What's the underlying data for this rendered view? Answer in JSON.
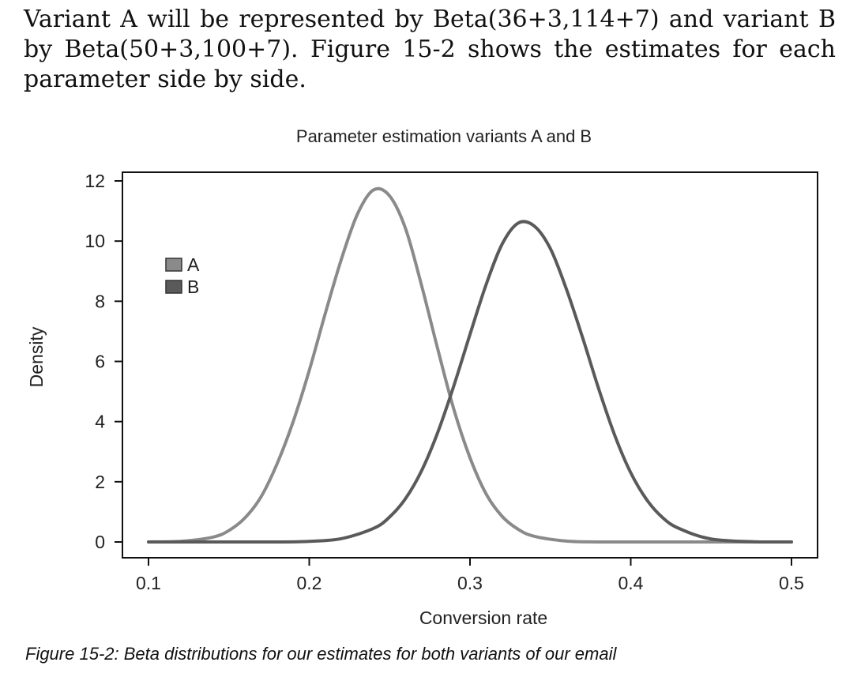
{
  "document": {
    "intro_text": "Variant A will be represented by Beta(36+3,114+7) and variant B by Beta(50+3,100+7). Figure 15-2 shows the estimates for each parameter side by side.",
    "caption": "Figure 15-2: Beta distributions for our estimates for both variants of our email"
  },
  "chart_data": {
    "type": "line",
    "title": "Parameter estimation variants A and B",
    "xlabel": "Conversion rate",
    "ylabel": "Density",
    "xlim": [
      0.1,
      0.5
    ],
    "ylim": [
      0,
      12
    ],
    "x_ticks": [
      "0.1",
      "0.2",
      "0.3",
      "0.4",
      "0.5"
    ],
    "y_ticks": [
      "0",
      "2",
      "4",
      "6",
      "8",
      "10",
      "12"
    ],
    "grid": false,
    "legend_position": "top-left",
    "series": [
      {
        "name": "A",
        "color": "#8a8a8a",
        "x": [
          0.1,
          0.12,
          0.14,
          0.15,
          0.16,
          0.17,
          0.18,
          0.19,
          0.2,
          0.21,
          0.22,
          0.23,
          0.24,
          0.25,
          0.26,
          0.27,
          0.28,
          0.29,
          0.3,
          0.31,
          0.32,
          0.33,
          0.34,
          0.36,
          0.38,
          0.4,
          0.45,
          0.5
        ],
        "y": [
          0.0,
          0.02,
          0.16,
          0.38,
          0.8,
          1.5,
          2.6,
          4.0,
          5.7,
          7.6,
          9.4,
          10.9,
          11.7,
          11.5,
          10.4,
          8.5,
          6.4,
          4.4,
          2.8,
          1.6,
          0.85,
          0.42,
          0.19,
          0.03,
          0.0,
          0.0,
          0.0,
          0.0
        ]
      },
      {
        "name": "B",
        "color": "#5a5a5a",
        "x": [
          0.1,
          0.15,
          0.18,
          0.2,
          0.22,
          0.24,
          0.25,
          0.26,
          0.27,
          0.28,
          0.29,
          0.3,
          0.31,
          0.32,
          0.33,
          0.34,
          0.35,
          0.36,
          0.37,
          0.38,
          0.39,
          0.4,
          0.41,
          0.42,
          0.43,
          0.45,
          0.48,
          0.5
        ],
        "y": [
          0.0,
          0.0,
          0.0,
          0.02,
          0.11,
          0.45,
          0.83,
          1.45,
          2.38,
          3.65,
          5.2,
          6.9,
          8.55,
          9.9,
          10.6,
          10.5,
          9.75,
          8.4,
          6.8,
          5.1,
          3.55,
          2.3,
          1.4,
          0.8,
          0.45,
          0.1,
          0.0,
          0.0
        ]
      }
    ]
  }
}
